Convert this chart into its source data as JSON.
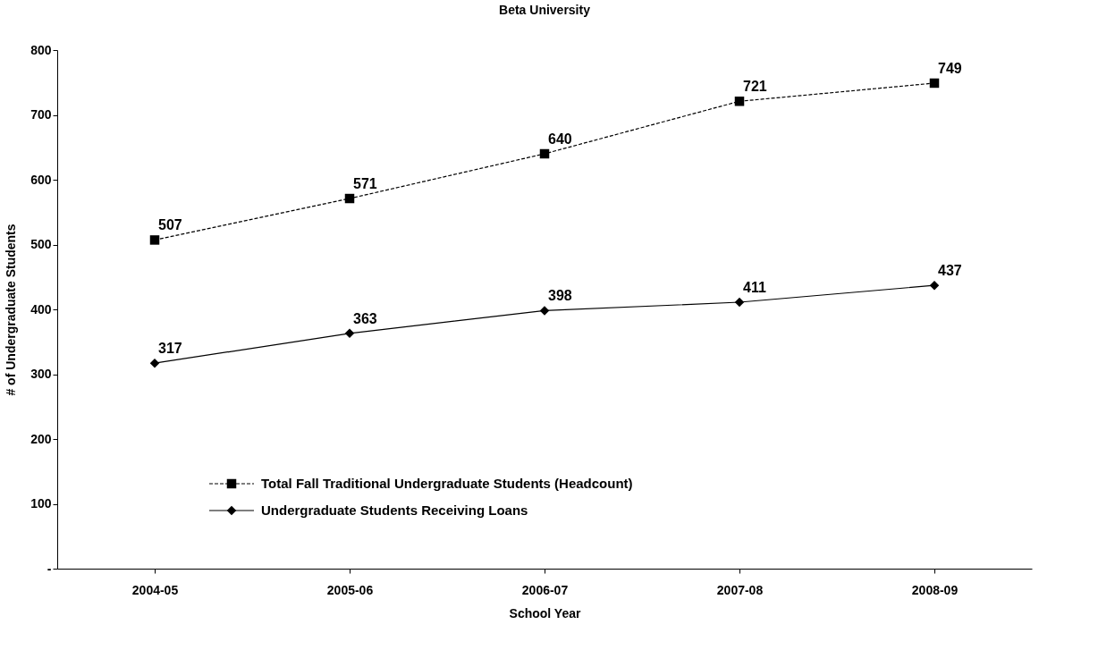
{
  "chart_data": {
    "type": "line",
    "title": "Beta University",
    "xlabel": "School Year",
    "ylabel": "# of Undergraduate Students",
    "categories": [
      "2004-05",
      "2005-06",
      "2006-07",
      "2007-08",
      "2008-09"
    ],
    "series": [
      {
        "name": "Total Fall Traditional Undergraduate Students (Headcount)",
        "color": "#000000",
        "values": [
          507,
          571,
          640,
          721,
          749
        ],
        "marker": "square",
        "line_style": "dashed"
      },
      {
        "name": "Undergraduate Students Receiving Loans",
        "color": "#000000",
        "values": [
          317,
          363,
          398,
          411,
          437
        ],
        "marker": "diamond",
        "line_style": "solid"
      }
    ],
    "ylim": [
      0,
      800
    ],
    "yticks": [
      {
        "value": 0,
        "label": "-"
      },
      100,
      200,
      300,
      400,
      500,
      600,
      700,
      800
    ],
    "grid": false,
    "legend": "bottom left",
    "data_labels": true
  }
}
